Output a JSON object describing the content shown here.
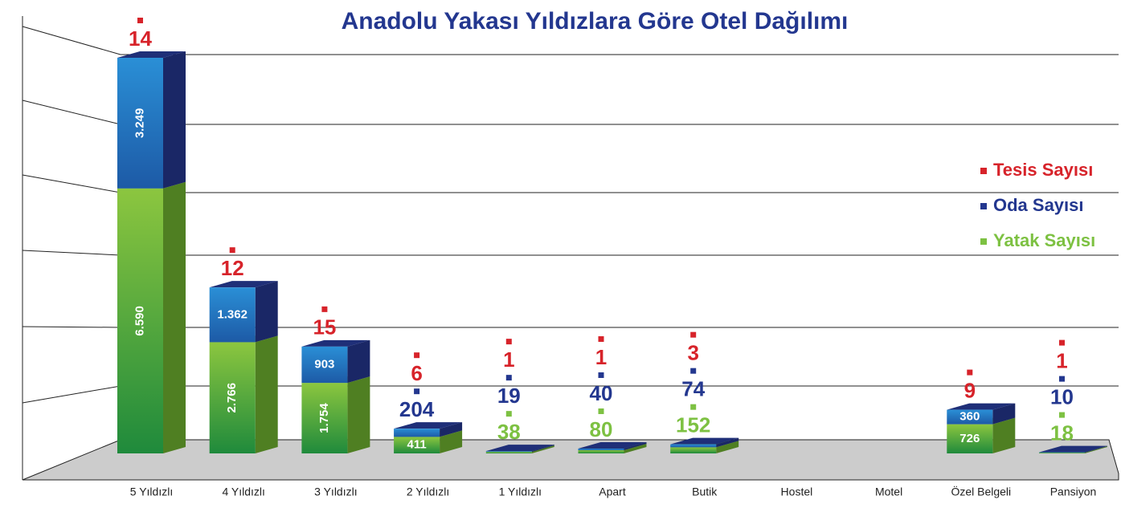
{
  "chart_data": {
    "type": "bar3d_stacked",
    "title": "Anadolu Yakası Yıldızlara Göre Otel Dağılımı",
    "categories": [
      "5 Yıldızlı",
      "4 Yıldızlı",
      "3 Yıldızlı",
      "2 Yıldızlı",
      "1 Yıldızlı",
      "Apart",
      "Butik",
      "Hostel",
      "Motel",
      "Özel Belgeli",
      "Pansiyon"
    ],
    "series": [
      {
        "name": "Tesis Sayısı",
        "color": "#d7232a",
        "values": [
          14,
          12,
          15,
          6,
          1,
          1,
          3,
          null,
          null,
          9,
          1
        ]
      },
      {
        "name": "Oda Sayısı",
        "color": "#23378f",
        "values": [
          3249,
          1362,
          903,
          204,
          19,
          40,
          74,
          null,
          null,
          360,
          10
        ],
        "value_labels": [
          "3.249",
          "1.362",
          "903",
          "204",
          "19",
          "40",
          "74",
          null,
          null,
          "360",
          "10"
        ]
      },
      {
        "name": "Yatak Sayısı",
        "color": "#7dc142",
        "values": [
          6590,
          2766,
          1754,
          411,
          38,
          80,
          152,
          null,
          null,
          726,
          18
        ],
        "value_labels": [
          "6.590",
          "2.766",
          "1.754",
          "411",
          "38",
          "80",
          "152",
          null,
          null,
          "726",
          "18"
        ]
      }
    ],
    "legend": "right"
  }
}
